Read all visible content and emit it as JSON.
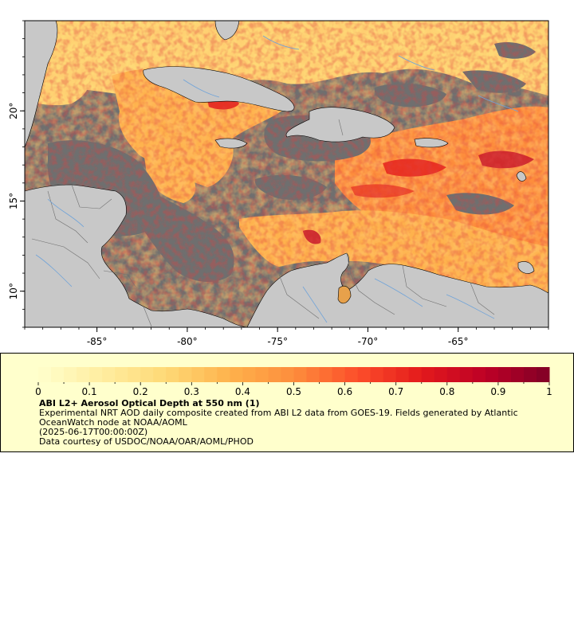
{
  "map": {
    "lon_range": [
      -89,
      -60
    ],
    "lat_range": [
      8,
      25
    ],
    "colors": {
      "ocean": "#6f6f6f",
      "land": "#c8c8c8",
      "rivers": "#6fa3d9",
      "borders": "#707070",
      "coast": "#000000"
    },
    "lon_ticks": [
      {
        "value": -85,
        "label": "-85°"
      },
      {
        "value": -80,
        "label": "-80°"
      },
      {
        "value": -75,
        "label": "-75°"
      },
      {
        "value": -70,
        "label": "-70°"
      },
      {
        "value": -65,
        "label": "-65°"
      }
    ],
    "lat_ticks": [
      {
        "value": 10,
        "label": "10°"
      },
      {
        "value": 15,
        "label": "15°"
      },
      {
        "value": 20,
        "label": "20°"
      }
    ]
  },
  "colorbar": {
    "min": 0,
    "max": 1,
    "palette": [
      "#ffffcc",
      "#ffeda0",
      "#fed976",
      "#feb24c",
      "#fd8d3c",
      "#fc4e2a",
      "#e31a1c",
      "#bd0026",
      "#800026"
    ],
    "tick_labels": [
      "0",
      "0.1",
      "0.2",
      "0.3",
      "0.4",
      "0.5",
      "0.6",
      "0.7",
      "0.8",
      "0.9",
      "1"
    ]
  },
  "legend": {
    "title": "ABI L2+ Aerosol Optical Depth at 550 nm (1)",
    "description": "Experimental NRT AOD daily composite created from ABI L2 data from GOES-19. Fields generated by Atlantic OceanWatch node at NOAA/AOML",
    "time": "(2025-06-17T00:00:00Z)",
    "credit": "Data courtesy of USDOC/NOAA/OAR/AOML/PHOD"
  }
}
